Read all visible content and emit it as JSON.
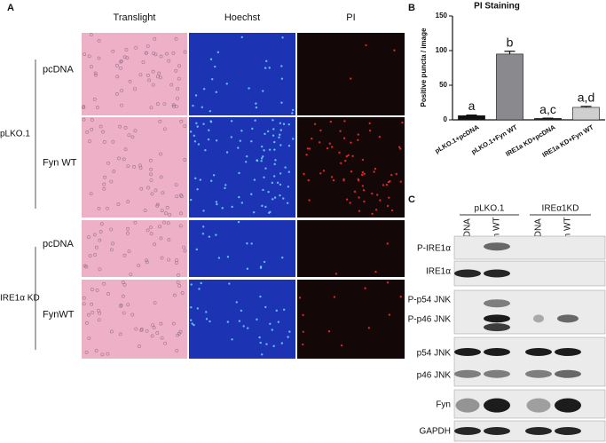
{
  "panel_a": {
    "label": "A",
    "columns": [
      "Translight",
      "Hoechst",
      "PI"
    ],
    "groups": [
      {
        "name": "pLKO.1",
        "rows": [
          "pcDNA",
          "Fyn WT"
        ]
      },
      {
        "name": "IRE1α KD",
        "rows": [
          "pcDNA",
          "FynWT"
        ]
      }
    ]
  },
  "chart_data": {
    "type": "bar",
    "panel_label": "B",
    "title": "PI Staining",
    "ylabel": "Positive puncta / image",
    "categories": [
      "pLKO.1+pcDNA",
      "pLKO.1+Fyn WT",
      "IRE1a KD+pcDNA",
      "IRE1a KD+Fyn WT"
    ],
    "values": [
      6,
      95,
      2,
      18
    ],
    "errors": [
      1,
      4,
      0.5,
      1.5
    ],
    "annotations": [
      "a",
      "b",
      "a,c",
      "a,d"
    ],
    "colors": [
      "#111111",
      "#8a8a8e",
      "#2a2a2a",
      "#cfcfcf"
    ],
    "ylim": [
      0,
      150
    ],
    "yticks": [
      0,
      50,
      100,
      150
    ]
  },
  "panel_c": {
    "label": "C",
    "groups": [
      "pLKO.1",
      "IREα1KD"
    ],
    "lanes": [
      "pcDNA",
      "Fyn WT",
      "pcDNA",
      "Fyn WT"
    ],
    "blots": [
      {
        "labels": [
          "P-IRE1α"
        ]
      },
      {
        "labels": [
          "IRE1α"
        ]
      },
      {
        "labels": [
          "P-p54 JNK",
          "P-p46 JNK"
        ]
      },
      {
        "labels": [
          "p54 JNK",
          "p46 JNK"
        ]
      },
      {
        "labels": [
          "Fyn"
        ]
      },
      {
        "labels": [
          "GAPDH"
        ]
      }
    ]
  }
}
